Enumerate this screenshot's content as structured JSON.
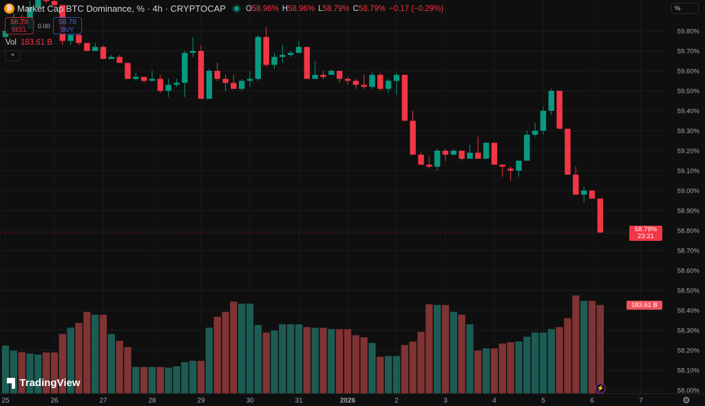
{
  "header": {
    "logo_letter": "₿",
    "title": "Market Cap BTC Dominance, % · 4h · CRYPTOCAP",
    "ohlc": {
      "o_label": "O",
      "o": "58.96%",
      "h_label": "H",
      "h": "58.96%",
      "l_label": "L",
      "l": "58.79%",
      "c_label": "C",
      "c": "58.79%",
      "change": "−0.17 (−0.29%)"
    },
    "market_status": "open"
  },
  "trade": {
    "sell_price": "58.78",
    "sell_label": "SELL",
    "spread": "0.00",
    "buy_price": "58.78",
    "buy_label": "BUY"
  },
  "volume_legend": {
    "label": "Vol",
    "value": "183.61 B"
  },
  "collapse_icon": "^",
  "unit_button": "%",
  "price_tag": {
    "price": "58.79%",
    "countdown": "23:21"
  },
  "volume_tag": "183.61 B",
  "branding": "TradingView",
  "colors": {
    "up": "#089981",
    "down": "#f23645",
    "vol_up": "#1d5c55",
    "vol_down": "#7f3333",
    "background": "#0f0f0f"
  },
  "chart_data": {
    "type": "candlestick",
    "interval": "4h",
    "x_ticks": [
      "25",
      "26",
      "27",
      "28",
      "29",
      "30",
      "31",
      "2026",
      "2",
      "3",
      "4",
      "5",
      "6",
      "7"
    ],
    "y_ticks": [
      "59.80%",
      "59.70%",
      "59.60%",
      "59.50%",
      "59.40%",
      "59.30%",
      "59.20%",
      "59.10%",
      "59.00%",
      "58.90%",
      "58.80%",
      "58.70%",
      "58.60%",
      "58.50%",
      "58.40%",
      "58.30%",
      "58.20%",
      "58.10%",
      "58.00%"
    ],
    "ylim": [
      58.0,
      59.95
    ],
    "grid": true,
    "ohlc": [
      [
        59.77,
        59.81,
        59.76,
        59.8
      ],
      [
        59.8,
        59.89,
        59.79,
        59.87
      ],
      [
        59.87,
        59.88,
        59.8,
        59.81
      ],
      [
        59.81,
        59.95,
        59.8,
        59.92
      ],
      [
        59.92,
        59.98,
        59.9,
        59.97
      ],
      [
        59.97,
        59.98,
        59.94,
        59.95
      ],
      [
        59.95,
        59.96,
        59.92,
        59.93
      ],
      [
        59.93,
        59.93,
        59.73,
        59.75
      ],
      [
        59.75,
        59.79,
        59.73,
        59.78
      ],
      [
        59.78,
        59.79,
        59.73,
        59.74
      ],
      [
        59.74,
        59.74,
        59.7,
        59.7
      ],
      [
        59.7,
        59.74,
        59.7,
        59.72
      ],
      [
        59.72,
        59.73,
        59.66,
        59.66
      ],
      [
        59.66,
        59.68,
        59.66,
        59.67
      ],
      [
        59.67,
        59.68,
        59.64,
        59.64
      ],
      [
        59.64,
        59.64,
        59.56,
        59.56
      ],
      [
        59.56,
        59.59,
        59.55,
        59.57
      ],
      [
        59.57,
        59.57,
        59.54,
        59.55
      ],
      [
        59.55,
        59.6,
        59.55,
        59.56
      ],
      [
        59.56,
        59.58,
        59.49,
        59.5
      ],
      [
        59.5,
        59.56,
        59.47,
        59.53
      ],
      [
        59.53,
        59.56,
        59.52,
        59.54
      ],
      [
        59.54,
        59.7,
        59.47,
        59.69
      ],
      [
        59.69,
        59.77,
        59.67,
        59.7
      ],
      [
        59.7,
        59.73,
        59.46,
        59.46
      ],
      [
        59.46,
        59.61,
        59.46,
        59.6
      ],
      [
        59.6,
        59.64,
        59.55,
        59.56
      ],
      [
        59.56,
        59.58,
        59.5,
        59.54
      ],
      [
        59.54,
        59.58,
        59.51,
        59.51
      ],
      [
        59.51,
        59.56,
        59.5,
        59.55
      ],
      [
        59.55,
        59.6,
        59.52,
        59.56
      ],
      [
        59.56,
        59.78,
        59.55,
        59.77
      ],
      [
        59.77,
        59.82,
        59.62,
        59.63
      ],
      [
        59.63,
        59.69,
        59.61,
        59.67
      ],
      [
        59.67,
        59.73,
        59.64,
        59.68
      ],
      [
        59.68,
        59.7,
        59.67,
        59.69
      ],
      [
        59.69,
        59.75,
        59.69,
        59.72
      ],
      [
        59.72,
        59.72,
        59.56,
        59.56
      ],
      [
        59.56,
        59.65,
        59.56,
        59.58
      ],
      [
        59.58,
        59.6,
        59.56,
        59.57
      ],
      [
        59.58,
        59.61,
        59.58,
        59.6
      ],
      [
        59.6,
        59.6,
        59.54,
        59.56
      ],
      [
        59.56,
        59.57,
        59.53,
        59.55
      ],
      [
        59.55,
        59.56,
        59.51,
        59.53
      ],
      [
        59.53,
        59.58,
        59.51,
        59.52
      ],
      [
        59.52,
        59.59,
        59.51,
        59.58
      ],
      [
        59.58,
        59.59,
        59.5,
        59.51
      ],
      [
        59.51,
        59.56,
        59.49,
        59.55
      ],
      [
        59.55,
        59.59,
        59.48,
        59.58
      ],
      [
        59.58,
        59.58,
        59.35,
        59.35
      ],
      [
        59.35,
        59.4,
        59.18,
        59.18
      ],
      [
        59.18,
        59.19,
        59.13,
        59.13
      ],
      [
        59.13,
        59.17,
        59.11,
        59.12
      ],
      [
        59.12,
        59.21,
        59.1,
        59.2
      ],
      [
        59.2,
        59.21,
        59.15,
        59.18
      ],
      [
        59.18,
        59.21,
        59.18,
        59.2
      ],
      [
        59.2,
        59.2,
        59.15,
        59.16
      ],
      [
        59.16,
        59.23,
        59.16,
        59.19
      ],
      [
        59.19,
        59.27,
        59.16,
        59.16
      ],
      [
        59.16,
        59.24,
        59.16,
        59.24
      ],
      [
        59.24,
        59.24,
        59.13,
        59.13
      ],
      [
        59.13,
        59.13,
        59.07,
        59.12
      ],
      [
        59.11,
        59.12,
        59.05,
        59.1
      ],
      [
        59.1,
        59.15,
        59.07,
        59.15
      ],
      [
        59.15,
        59.3,
        59.15,
        59.28
      ],
      [
        59.28,
        59.34,
        59.27,
        59.3
      ],
      [
        59.3,
        59.42,
        59.28,
        59.4
      ],
      [
        59.4,
        59.51,
        59.38,
        59.5
      ],
      [
        59.5,
        59.5,
        59.31,
        59.31
      ],
      [
        59.31,
        59.31,
        59.08,
        59.08
      ],
      [
        59.08,
        59.12,
        58.98,
        58.98
      ],
      [
        58.98,
        59.02,
        58.94,
        59.0
      ],
      [
        59.0,
        59.0,
        58.96,
        58.96
      ],
      [
        58.96,
        58.96,
        58.79,
        58.79
      ]
    ],
    "volume_unit": "B",
    "volume": [
      99.6,
      89.6,
      86.1,
      83.2,
      81.1,
      85.4,
      85.4,
      123.8,
      136.6,
      146.6,
      169.3,
      163.6,
      163.6,
      123.8,
      109.6,
      96.8,
      55.5,
      55.5,
      55.5,
      55.5,
      54.1,
      56.9,
      65.5,
      68.3,
      68.3,
      136.6,
      159.4,
      169.3,
      190.7,
      186.4,
      186.4,
      142.3,
      126.6,
      130.9,
      143.7,
      143.7,
      143.7,
      138.0,
      136.6,
      136.6,
      133.8,
      133.8,
      133.8,
      121.0,
      116.7,
      105.3,
      76.8,
      78.3,
      78.3,
      101.0,
      108.1,
      128.1,
      185.0,
      183.6,
      183.6,
      169.3,
      163.6,
      143.7,
      89.6,
      93.9,
      93.9,
      103.9,
      106.7,
      108.1,
      118.1,
      126.6,
      126.6,
      133.8,
      138.0,
      156.5,
      203.5,
      192.1,
      192.1,
      183.61
    ],
    "last_price": 58.79
  }
}
